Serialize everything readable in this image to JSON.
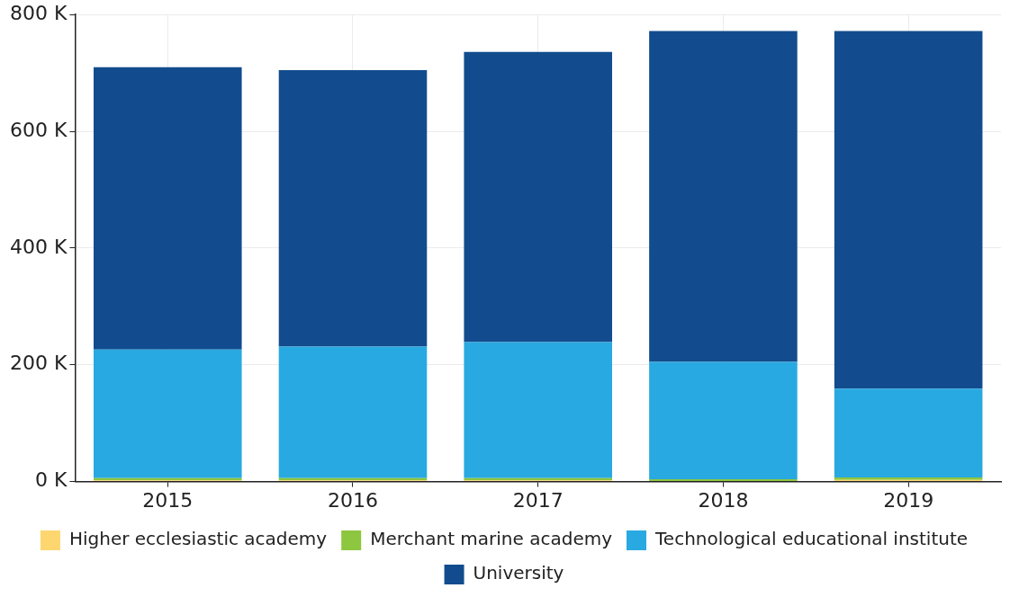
{
  "chart_data": {
    "type": "bar",
    "stacked": true,
    "categories": [
      "2015",
      "2016",
      "2017",
      "2018",
      "2019"
    ],
    "series": [
      {
        "name": "Higher ecclesiastic academy",
        "color": "#fdd66f",
        "values": [
          2000,
          2000,
          2000,
          1000,
          3000
        ]
      },
      {
        "name": "Merchant marine academy",
        "color": "#8dc63f",
        "values": [
          4000,
          4000,
          4000,
          3000,
          4000
        ]
      },
      {
        "name": "Technological educational institute",
        "color": "#29a9e1",
        "values": [
          220000,
          225000,
          233000,
          201000,
          152000
        ]
      },
      {
        "name": "University",
        "color": "#124c8e",
        "values": [
          484000,
          474000,
          497000,
          567000,
          613000
        ]
      }
    ],
    "ylim": [
      0,
      800000
    ],
    "yticks": [
      {
        "value": 0,
        "label": "0 K"
      },
      {
        "value": 200000,
        "label": "200 K"
      },
      {
        "value": 400000,
        "label": "400 K"
      },
      {
        "value": 600000,
        "label": "600 K"
      },
      {
        "value": 800000,
        "label": "800 K"
      }
    ],
    "grid": true,
    "legend": "bottom"
  }
}
